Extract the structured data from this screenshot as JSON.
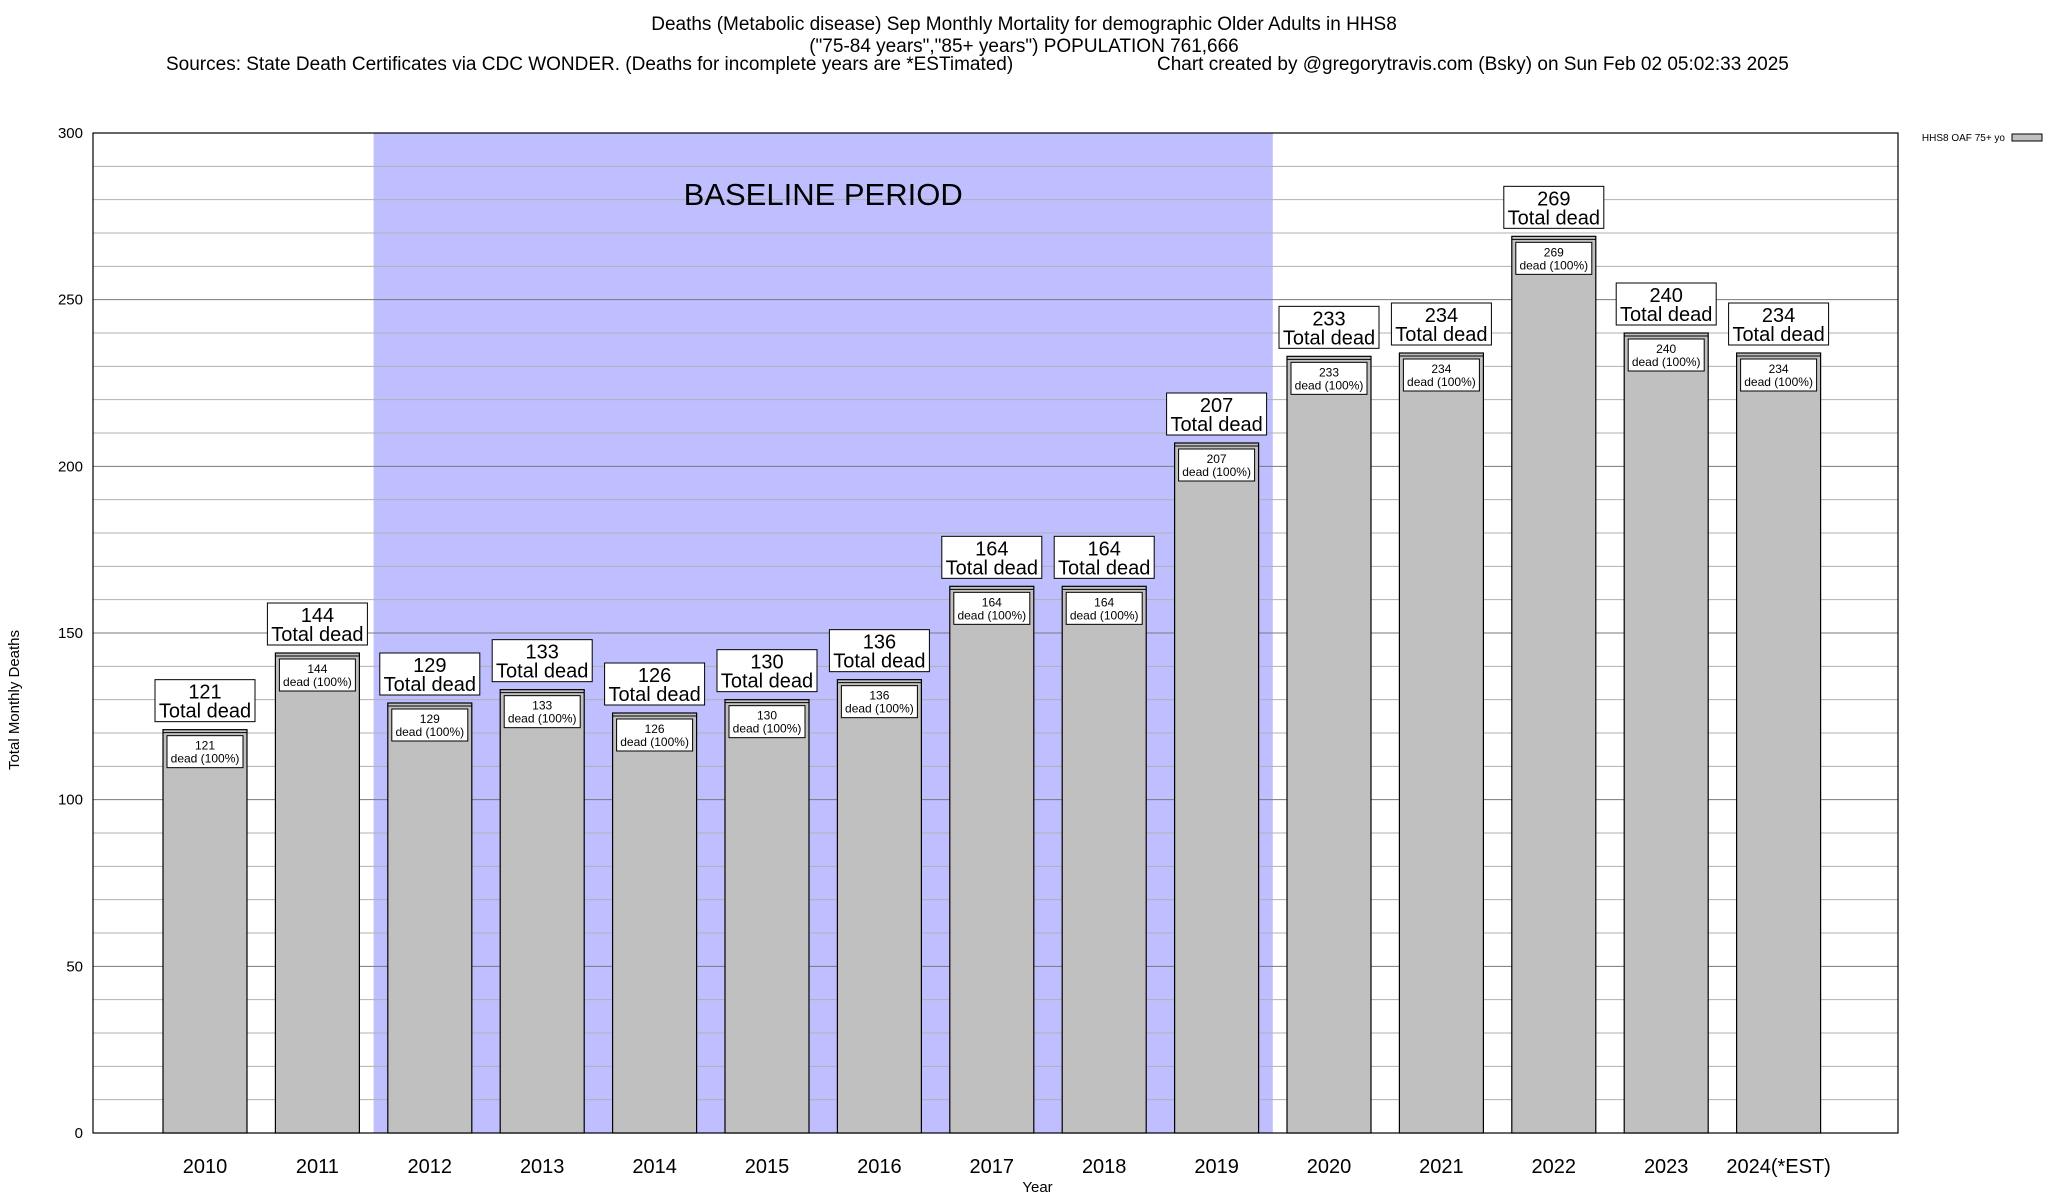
{
  "title": {
    "line1": "Deaths (Metabolic disease) Sep Monthly Mortality for demographic Older Adults in HHS8",
    "line2": "(\"75-84 years\",\"85+ years\") POPULATION 761,666",
    "sources": "Sources: State Death Certificates via CDC WONDER. (Deaths for incomplete years are *ESTimated)",
    "credit": "Chart created by @gregorytravis.com (Bsky) on Sun Feb 02 05:02:33 2025"
  },
  "chart_data": {
    "type": "bar",
    "title": "Deaths (Metabolic disease) Sep Monthly Mortality for demographic Older Adults in HHS8",
    "xlabel": "Year",
    "ylabel": "Total Monthly Deaths",
    "ylim": [
      0,
      300
    ],
    "yticks": [
      0,
      50,
      100,
      150,
      200,
      250,
      300
    ],
    "minor_grid_step": 10,
    "grid": true,
    "legend_position": "top-right",
    "categories": [
      "2010",
      "2011",
      "2012",
      "2013",
      "2014",
      "2015",
      "2016",
      "2017",
      "2018",
      "2019",
      "2020",
      "2021",
      "2022",
      "2023",
      "2024(*EST)"
    ],
    "series": [
      {
        "name": "HHS8 OAF 75+ yo",
        "color": "#c0c0c0",
        "values": [
          121,
          144,
          129,
          133,
          126,
          130,
          136,
          164,
          164,
          207,
          233,
          234,
          269,
          240,
          234
        ]
      }
    ],
    "total_label": "Total dead",
    "inner_label": "dead (100%)",
    "baseline": {
      "label": "BASELINE PERIOD",
      "from": "2012",
      "to": "2019",
      "color": "#bfbfff"
    }
  }
}
